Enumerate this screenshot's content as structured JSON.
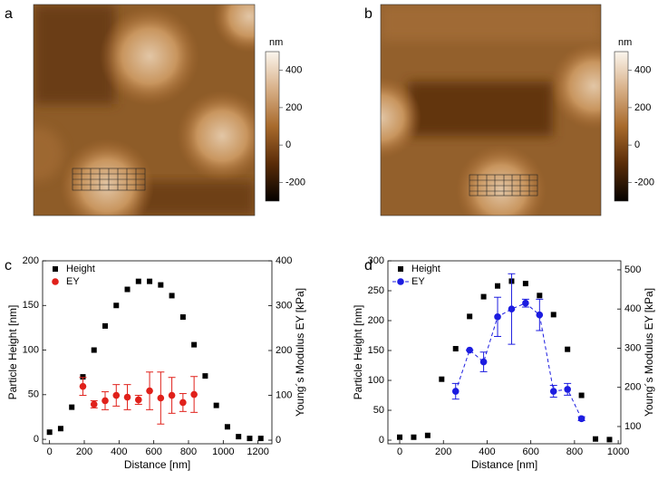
{
  "panels": [
    {
      "label": "a",
      "colorbar": {
        "unit": "nm",
        "lim": [
          -300,
          500
        ],
        "ticks": [
          -200,
          0,
          200,
          400
        ]
      }
    },
    {
      "label": "b",
      "colorbar": {
        "unit": "nm",
        "lim": [
          -300,
          500
        ],
        "ticks": [
          -200,
          0,
          200,
          400
        ]
      }
    }
  ],
  "chart_data": [
    {
      "type": "scatter",
      "label": "c",
      "xlabel": "Distance [nm]",
      "ylabel": "Particle Height [nm]",
      "y2label": "Young´s Modulus EY [kPa]",
      "xlim": [
        -40,
        1280
      ],
      "xticks": [
        0,
        200,
        400,
        600,
        800,
        1000,
        1200
      ],
      "ylim": [
        -5,
        200
      ],
      "yticks": [
        0,
        50,
        100,
        150,
        200
      ],
      "y2lim": [
        -8,
        400
      ],
      "y2ticks": [
        0,
        100,
        200,
        300,
        400
      ],
      "legend": "upper left",
      "series": [
        {
          "name": "Height",
          "color": "#000000",
          "marker": "square",
          "x": [
            0,
            64,
            128,
            192,
            256,
            320,
            384,
            448,
            512,
            576,
            640,
            704,
            768,
            832,
            896,
            960,
            1024,
            1088,
            1152,
            1216
          ],
          "values": [
            8,
            12,
            36,
            70,
            100,
            127,
            150,
            168,
            177,
            177,
            173,
            161,
            137,
            106,
            71,
            38,
            14,
            3,
            1,
            1
          ]
        },
        {
          "name": "EY",
          "color": "#e0201a",
          "marker": "circle",
          "axis": "y2",
          "x": [
            192,
            256,
            320,
            384,
            448,
            512,
            576,
            640,
            704,
            768,
            832
          ],
          "values": [
            120,
            80,
            88,
            100,
            96,
            90,
            110,
            94,
            100,
            84,
            102
          ],
          "errors": [
            20,
            8,
            20,
            24,
            28,
            10,
            42,
            58,
            40,
            20,
            40
          ]
        }
      ]
    },
    {
      "type": "scatter",
      "label": "d",
      "xlabel": "Distance [nm]",
      "ylabel": "Particle Height [nm]",
      "y2label": "Young´s Modulus EY [kPa]",
      "xlim": [
        -54,
        1012
      ],
      "xticks": [
        0,
        200,
        400,
        600,
        800,
        1000
      ],
      "ylim": [
        -6,
        300
      ],
      "yticks": [
        0,
        50,
        100,
        150,
        200,
        250,
        300
      ],
      "y2lim": [
        56,
        523
      ],
      "y2ticks": [
        100,
        200,
        300,
        400,
        500
      ],
      "legend": "upper left",
      "series": [
        {
          "name": "Height",
          "color": "#000000",
          "marker": "square",
          "x": [
            0,
            64,
            128,
            192,
            256,
            320,
            384,
            448,
            512,
            576,
            640,
            704,
            768,
            832,
            896,
            960
          ],
          "values": [
            5,
            5,
            8,
            102,
            153,
            207,
            240,
            258,
            266,
            262,
            242,
            210,
            152,
            75,
            2,
            1
          ]
        },
        {
          "name": "EY",
          "color": "#1c1ce0",
          "marker": "circle",
          "axis": "y2",
          "linestyle": "dashed",
          "x": [
            256,
            320,
            384,
            448,
            512,
            576,
            640,
            704,
            768,
            832
          ],
          "values": [
            190,
            295,
            265,
            380,
            400,
            415,
            385,
            190,
            195,
            120
          ],
          "errors": [
            20,
            0,
            25,
            50,
            90,
            10,
            40,
            15,
            15,
            5
          ]
        }
      ]
    }
  ]
}
